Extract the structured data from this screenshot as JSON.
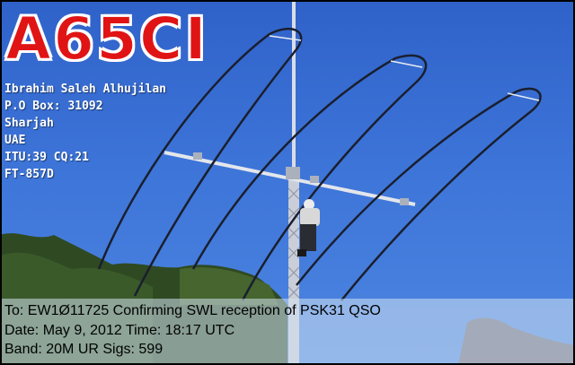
{
  "card": {
    "callsign": "A65CI"
  },
  "operator": {
    "name": "Ibrahim Saleh Alhujilan",
    "po_box": "P.O Box: 31092",
    "city": "Sharjah",
    "country": "UAE",
    "zones": "ITU:39 CQ:21",
    "rig": "FT-857D"
  },
  "qso": {
    "to_line": "To: EW1Ø11725 Confirming SWL reception of PSK31 QSO",
    "date_line": "Date: May 9, 2012  Time: 18:17 UTC",
    "band_line": "Band: 20M UR Sigs: 599"
  },
  "colors": {
    "sky": "#3d74d8",
    "callsign": "#e01414",
    "callsign_outline": "#ffffff",
    "info_text": "#ffffff",
    "confirm_text": "#000000"
  }
}
